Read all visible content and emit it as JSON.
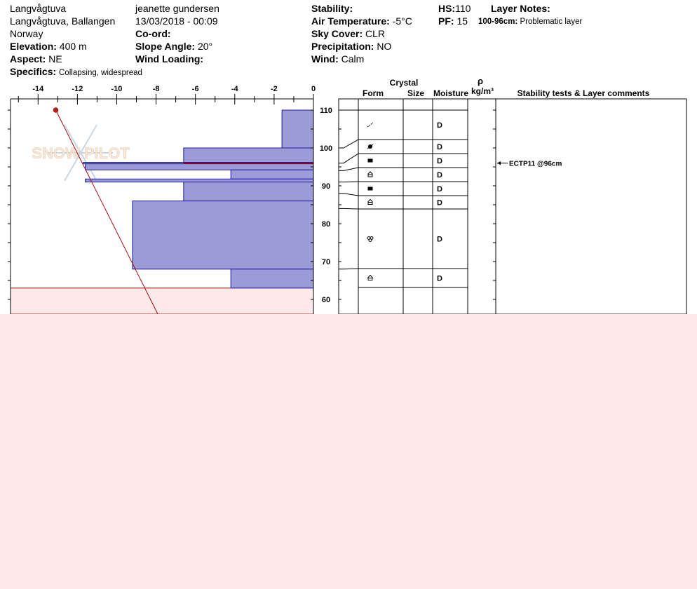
{
  "header": {
    "location_name": "Langvågtuva",
    "location_full": "Langvågtuva, Ballangen",
    "country": "Norway",
    "elevation_label": "Elevation:",
    "elevation_value": "400 m",
    "aspect_label": "Aspect:",
    "aspect_value": "NE",
    "specifics_label": "Specifics:",
    "specifics_value": "Collapsing, widespread",
    "observer": "jeanette gundersen",
    "datetime": "13/03/2018 - 00:09",
    "coord_label": "Co-ord:",
    "slope_label": "Slope Angle:",
    "slope_value": "20°",
    "wind_loading_label": "Wind Loading:",
    "stability_label": "Stability:",
    "air_temp_label": "Air Temperature:",
    "air_temp_value": "-5°C",
    "sky_label": "Sky Cover:",
    "sky_value": "CLR",
    "precip_label": "Precipitation:",
    "precip_value": "NO",
    "wind_label": "Wind:",
    "wind_value": "Calm",
    "hs_label": "HS:",
    "hs_value": "110",
    "pf_label": "PF:",
    "pf_value": "15",
    "layer_notes_label": "Layer Notes:",
    "layer_note_range": "100-96cm:",
    "layer_note_text": "Problematic layer"
  },
  "watermark": "SNOW PILOT",
  "columns": {
    "crystal": "Crystal",
    "form": "Form",
    "size": "Size",
    "moisture": "Moisture",
    "rho": "ρ",
    "density_unit": "kg/m³",
    "stability": "Stability tests & Layer comments"
  },
  "chart_data": {
    "type": "bar",
    "x_ticks": [
      "-14",
      "-12",
      "-10",
      "-8",
      "-6",
      "-4",
      "-2",
      "0"
    ],
    "xlim": [
      -15.4,
      0
    ],
    "y_ticks": [
      "110",
      "100",
      "90",
      "80",
      "70",
      "60"
    ],
    "ylim": [
      56,
      112
    ],
    "hardness_layers": [
      {
        "top": 110,
        "bottom": 100,
        "value": -1.6
      },
      {
        "top": 100,
        "bottom": 96.2,
        "value": -6.6
      },
      {
        "top": 96.2,
        "bottom": 95.8,
        "value": -11.7
      },
      {
        "top": 95.8,
        "bottom": 94.2,
        "value": -11.6
      },
      {
        "top": 94.2,
        "bottom": 91.8,
        "value": -4.2
      },
      {
        "top": 91.8,
        "bottom": 91.0,
        "value": -11.6
      },
      {
        "top": 91.0,
        "bottom": 86.0,
        "value": -6.6
      },
      {
        "top": 86.0,
        "bottom": 68.0,
        "value": -9.2
      },
      {
        "top": 68.0,
        "bottom": 63.0,
        "value": -4.2
      }
    ],
    "problem_layer_depth": 96,
    "ground": 63,
    "temperature_profile": [
      {
        "height": 110,
        "temp": -13.1
      },
      {
        "height": 56,
        "temp": -7.9
      }
    ],
    "layers": [
      {
        "top": 110,
        "bottom": 100,
        "form": "decomposing",
        "moisture": "D"
      },
      {
        "top": 100,
        "bottom": 96,
        "form": "surface-hoar",
        "moisture": "D"
      },
      {
        "top": 96,
        "bottom": 94,
        "form": "faceted",
        "moisture": "D"
      },
      {
        "top": 94,
        "bottom": 91,
        "form": "depth-hoar",
        "moisture": "D"
      },
      {
        "top": 91,
        "bottom": 88,
        "form": "faceted",
        "moisture": "D"
      },
      {
        "top": 88,
        "bottom": 84,
        "form": "depth-hoar",
        "moisture": "D"
      },
      {
        "top": 84,
        "bottom": 68,
        "form": "melt-forms",
        "moisture": "D"
      },
      {
        "top": 68,
        "bottom": 63,
        "form": "depth-hoar",
        "moisture": "D"
      }
    ],
    "test_result": {
      "height": 96,
      "text": "ECTP11 @96cm"
    }
  }
}
